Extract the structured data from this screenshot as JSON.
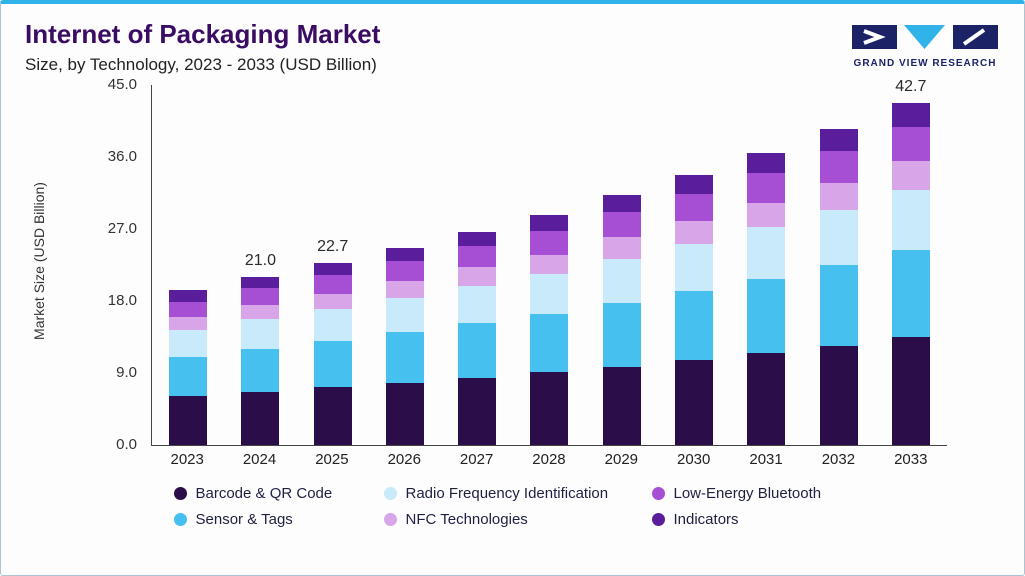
{
  "header": {
    "title": "Internet of Packaging Market",
    "subtitle": "Size, by Technology, 2023 - 2033 (USD Billion)",
    "logo_text": "GRAND VIEW RESEARCH"
  },
  "chart_data": {
    "type": "bar",
    "stacked": true,
    "title": "Internet of Packaging Market Size, by Technology, 2023 - 2033 (USD Billion)",
    "ylabel": "Market Size (USD Billion)",
    "ylim": [
      0,
      45
    ],
    "yticks": [
      "45.0",
      "36.0",
      "27.0",
      "18.0",
      "9.0",
      "0.0"
    ],
    "grid": false,
    "legend_position": "bottom",
    "categories": [
      "2023",
      "2024",
      "2025",
      "2026",
      "2027",
      "2028",
      "2029",
      "2030",
      "2031",
      "2032",
      "2033"
    ],
    "series": [
      {
        "name": "Barcode & QR Code",
        "color": "#2b0d49",
        "values": [
          6.1,
          6.6,
          7.2,
          7.8,
          8.4,
          9.1,
          9.8,
          10.6,
          11.5,
          12.4,
          13.5
        ]
      },
      {
        "name": "Sensor & Tags",
        "color": "#45c0ef",
        "values": [
          4.9,
          5.4,
          5.8,
          6.3,
          6.8,
          7.3,
          8.0,
          8.6,
          9.3,
          10.1,
          10.9
        ]
      },
      {
        "name": "Radio Frequency Identification",
        "color": "#c9eafa",
        "values": [
          3.4,
          3.7,
          4.0,
          4.3,
          4.7,
          5.0,
          5.5,
          5.9,
          6.4,
          6.9,
          7.5
        ]
      },
      {
        "name": "NFC Technologies",
        "color": "#d8a6e8",
        "values": [
          1.6,
          1.8,
          1.9,
          2.1,
          2.3,
          2.4,
          2.7,
          2.9,
          3.1,
          3.4,
          3.6
        ]
      },
      {
        "name": "Low-Energy Bluetooth",
        "color": "#a64fd4",
        "values": [
          1.9,
          2.1,
          2.3,
          2.5,
          2.7,
          2.9,
          3.1,
          3.4,
          3.7,
          4.0,
          4.3
        ]
      },
      {
        "name": "Indicators",
        "color": "#5a1e9c",
        "values": [
          1.5,
          1.4,
          1.5,
          1.6,
          1.7,
          2.1,
          2.1,
          2.3,
          2.5,
          2.7,
          2.9
        ]
      }
    ],
    "totals": [
      19.4,
      21.0,
      22.7,
      24.6,
      26.6,
      28.8,
      31.2,
      33.7,
      36.5,
      39.5,
      42.7
    ],
    "annotations": [
      {
        "category": "2024",
        "label": "21.0"
      },
      {
        "category": "2025",
        "label": "22.7"
      },
      {
        "category": "2033",
        "label": "42.7"
      }
    ],
    "legend": [
      {
        "label": "Barcode & QR Code",
        "color": "#2b0d49"
      },
      {
        "label": "Radio Frequency Identification",
        "color": "#c9eafa"
      },
      {
        "label": "Low-Energy Bluetooth",
        "color": "#a64fd4"
      },
      {
        "label": "Sensor & Tags",
        "color": "#45c0ef"
      },
      {
        "label": "NFC Technologies",
        "color": "#d8a6e8"
      },
      {
        "label": "Indicators",
        "color": "#5a1e9c"
      }
    ]
  }
}
